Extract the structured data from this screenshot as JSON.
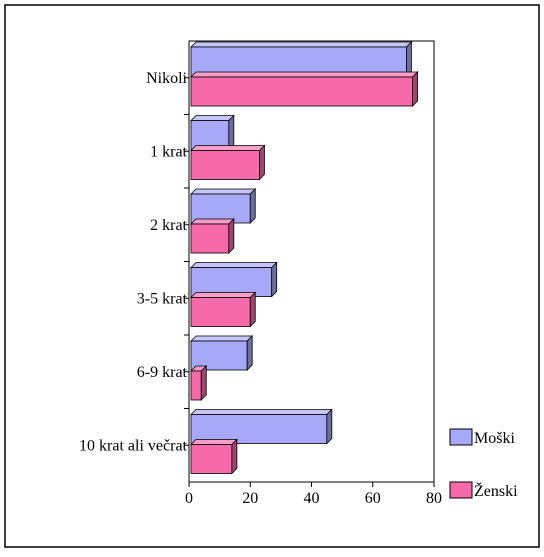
{
  "chart_data": {
    "type": "bar",
    "orientation": "horizontal",
    "style": "3d",
    "categories": [
      "Nikoli",
      "1 krat",
      "2 krat",
      "3-5 krat",
      "6-9 krat",
      "10 krat ali večrat"
    ],
    "series": [
      {
        "name": "Moški",
        "values": [
          71,
          13,
          20,
          27,
          19,
          45
        ],
        "color": "#a8a8f8"
      },
      {
        "name": "Ženski",
        "values": [
          73,
          23,
          13,
          20,
          4,
          14
        ],
        "color": "#f76aa9"
      }
    ],
    "xlim": [
      0,
      80
    ],
    "xticks": [
      0,
      20,
      40,
      60,
      80
    ],
    "grid": false,
    "legend_position": "right"
  }
}
